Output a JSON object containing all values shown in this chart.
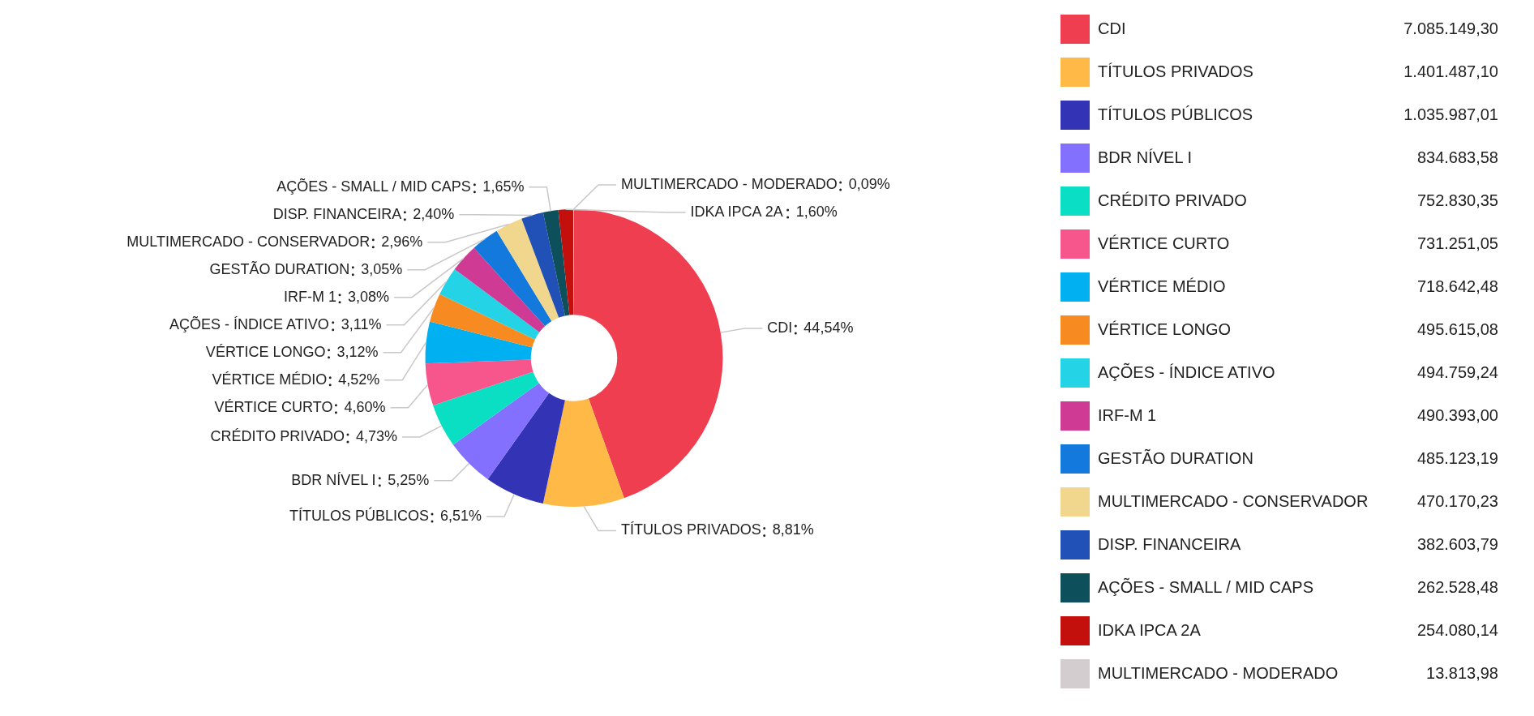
{
  "chart_data": {
    "type": "donut",
    "categories": [
      "CDI",
      "TÍTULOS PRIVADOS",
      "TÍTULOS PÚBLICOS",
      "BDR NÍVEL I",
      "CRÉDITO PRIVADO",
      "VÉRTICE CURTO",
      "VÉRTICE MÉDIO",
      "VÉRTICE LONGO",
      "AÇÕES - ÍNDICE ATIVO",
      "IRF-M 1",
      "GESTÃO DURATION",
      "MULTIMERCADO - CONSERVADOR",
      "DISP. FINANCEIRA",
      "AÇÕES - SMALL / MID CAPS",
      "IDKA IPCA 2A",
      "MULTIMERCADO - MODERADO"
    ],
    "values": [
      44.54,
      8.81,
      6.51,
      5.25,
      4.73,
      4.6,
      4.52,
      3.12,
      3.11,
      3.08,
      3.05,
      2.96,
      2.4,
      1.65,
      1.6,
      0.09
    ],
    "value_labels": [
      "44,54%",
      "8,81%",
      "6,51%",
      "5,25%",
      "4,73%",
      "4,60%",
      "4,52%",
      "3,12%",
      "3,11%",
      "3,08%",
      "3,05%",
      "2,96%",
      "2,40%",
      "1,65%",
      "1,60%",
      "0,09%"
    ],
    "annotations": [
      "7.085.149,30",
      "1.401.487,10",
      "1.035.987,01",
      "834.683,58",
      "752.830,35",
      "731.251,05",
      "718.642,48",
      "495.615,08",
      "494.759,24",
      "490.393,00",
      "485.123,19",
      "470.170,23",
      "382.603,79",
      "262.528,48",
      "254.080,14",
      "13.813,98"
    ],
    "colors": [
      "#ef3e50",
      "#ffb947",
      "#3333b5",
      "#8470ff",
      "#0adfc3",
      "#f7568c",
      "#00b0f0",
      "#f78b22",
      "#24d4e6",
      "#cf3a95",
      "#1479dc",
      "#f1d68d",
      "#2150b6",
      "#0d4f5a",
      "#c4100d",
      "#d3cdd0"
    ],
    "legend": "right"
  }
}
